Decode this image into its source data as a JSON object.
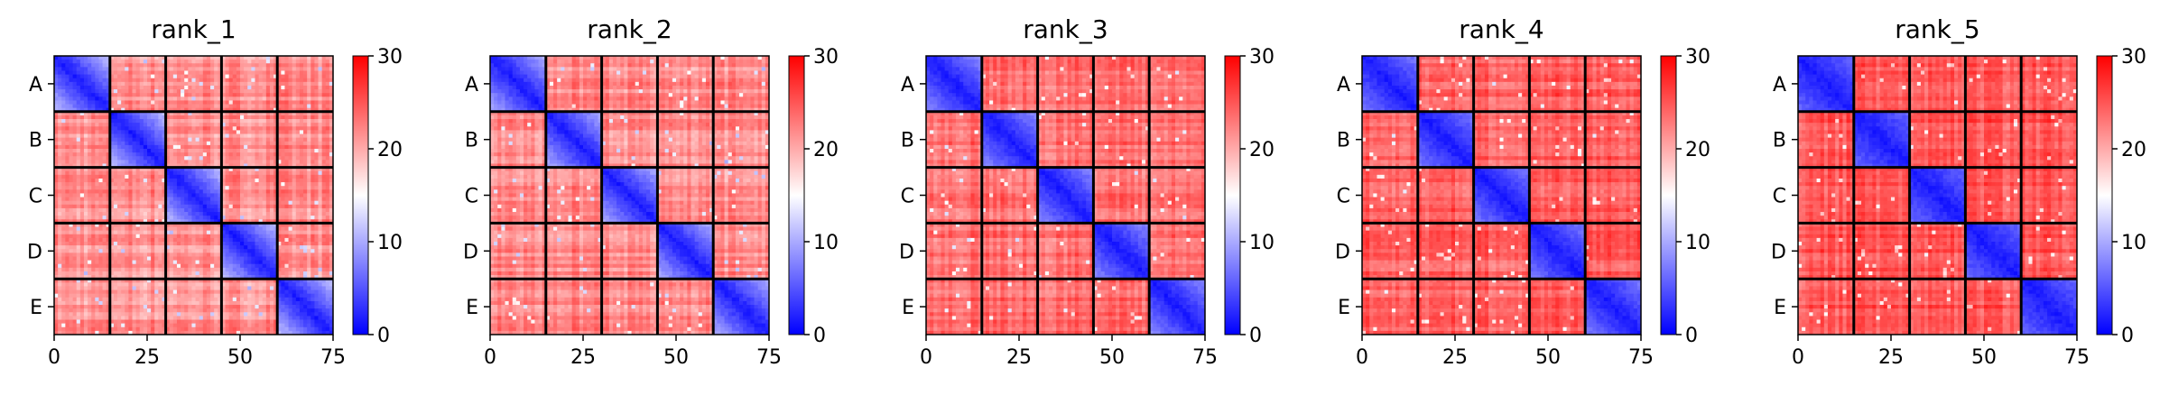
{
  "chart_data": {
    "type": "heatmap",
    "n_blocks": 5,
    "block_size": 15,
    "row_tick_labels": [
      "A",
      "B",
      "C",
      "D",
      "E"
    ],
    "x_ticks": [
      0,
      25,
      50,
      75
    ],
    "x_tick_labels": [
      "0",
      "25",
      "50",
      "75"
    ],
    "colorbar": {
      "range": [
        0,
        30
      ],
      "ticks": [
        0,
        10,
        20,
        30
      ],
      "tick_labels": [
        "0",
        "10",
        "20",
        "30"
      ],
      "colormap": [
        "#0000ff",
        "#ffffff",
        "#ff0000"
      ]
    },
    "panels": [
      {
        "title": "rank_1",
        "diag_low": 1.5,
        "diag_high": 11,
        "off_mean": 21.5,
        "off_noise": 3.5
      },
      {
        "title": "rank_2",
        "diag_low": 1.5,
        "diag_high": 10,
        "off_mean": 22,
        "off_noise": 3.5
      },
      {
        "title": "rank_3",
        "diag_low": 1.5,
        "diag_high": 8,
        "off_mean": 23.5,
        "off_noise": 3
      },
      {
        "title": "rank_4",
        "diag_low": 1.5,
        "diag_high": 7,
        "off_mean": 24.5,
        "off_noise": 3
      },
      {
        "title": "rank_5",
        "diag_low": 1.5,
        "diag_high": 6,
        "off_mean": 25,
        "off_noise": 3
      }
    ]
  }
}
